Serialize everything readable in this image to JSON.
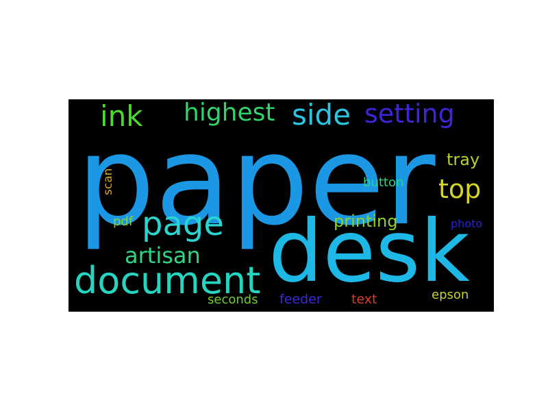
{
  "words": [
    {
      "key": "paper",
      "text": "paper",
      "color": "#1b97e3"
    },
    {
      "key": "desk",
      "text": "desk",
      "color": "#1eb8e6"
    },
    {
      "key": "document",
      "text": "document",
      "color": "#25d5c0"
    },
    {
      "key": "page",
      "text": "page",
      "color": "#2ad4d0"
    },
    {
      "key": "setting",
      "text": "setting",
      "color": "#3c26d8"
    },
    {
      "key": "side",
      "text": "side",
      "color": "#2cc4e0"
    },
    {
      "key": "highest",
      "text": "highest",
      "color": "#31d46a"
    },
    {
      "key": "ink",
      "text": "ink",
      "color": "#4ed832"
    },
    {
      "key": "top",
      "text": "top",
      "color": "#d4d429"
    },
    {
      "key": "artisan",
      "text": "artisan",
      "color": "#30d585"
    },
    {
      "key": "tray",
      "text": "tray",
      "color": "#b5d42b"
    },
    {
      "key": "printing",
      "text": "printing",
      "color": "#8ad42c"
    },
    {
      "key": "button",
      "text": "button",
      "color": "#2ad58a"
    },
    {
      "key": "pdf",
      "text": "pdf",
      "color": "#8ad433"
    },
    {
      "key": "scan",
      "text": "scan",
      "color": "#d4a329"
    },
    {
      "key": "photo",
      "text": "photo",
      "color": "#2d22c8"
    },
    {
      "key": "seconds",
      "text": "seconds",
      "color": "#6fcd30"
    },
    {
      "key": "feeder",
      "text": "feeder",
      "color": "#3b29d6"
    },
    {
      "key": "text",
      "text": "text",
      "color": "#d93a2a"
    },
    {
      "key": "epson",
      "text": "epson",
      "color": "#c9d02b"
    }
  ]
}
